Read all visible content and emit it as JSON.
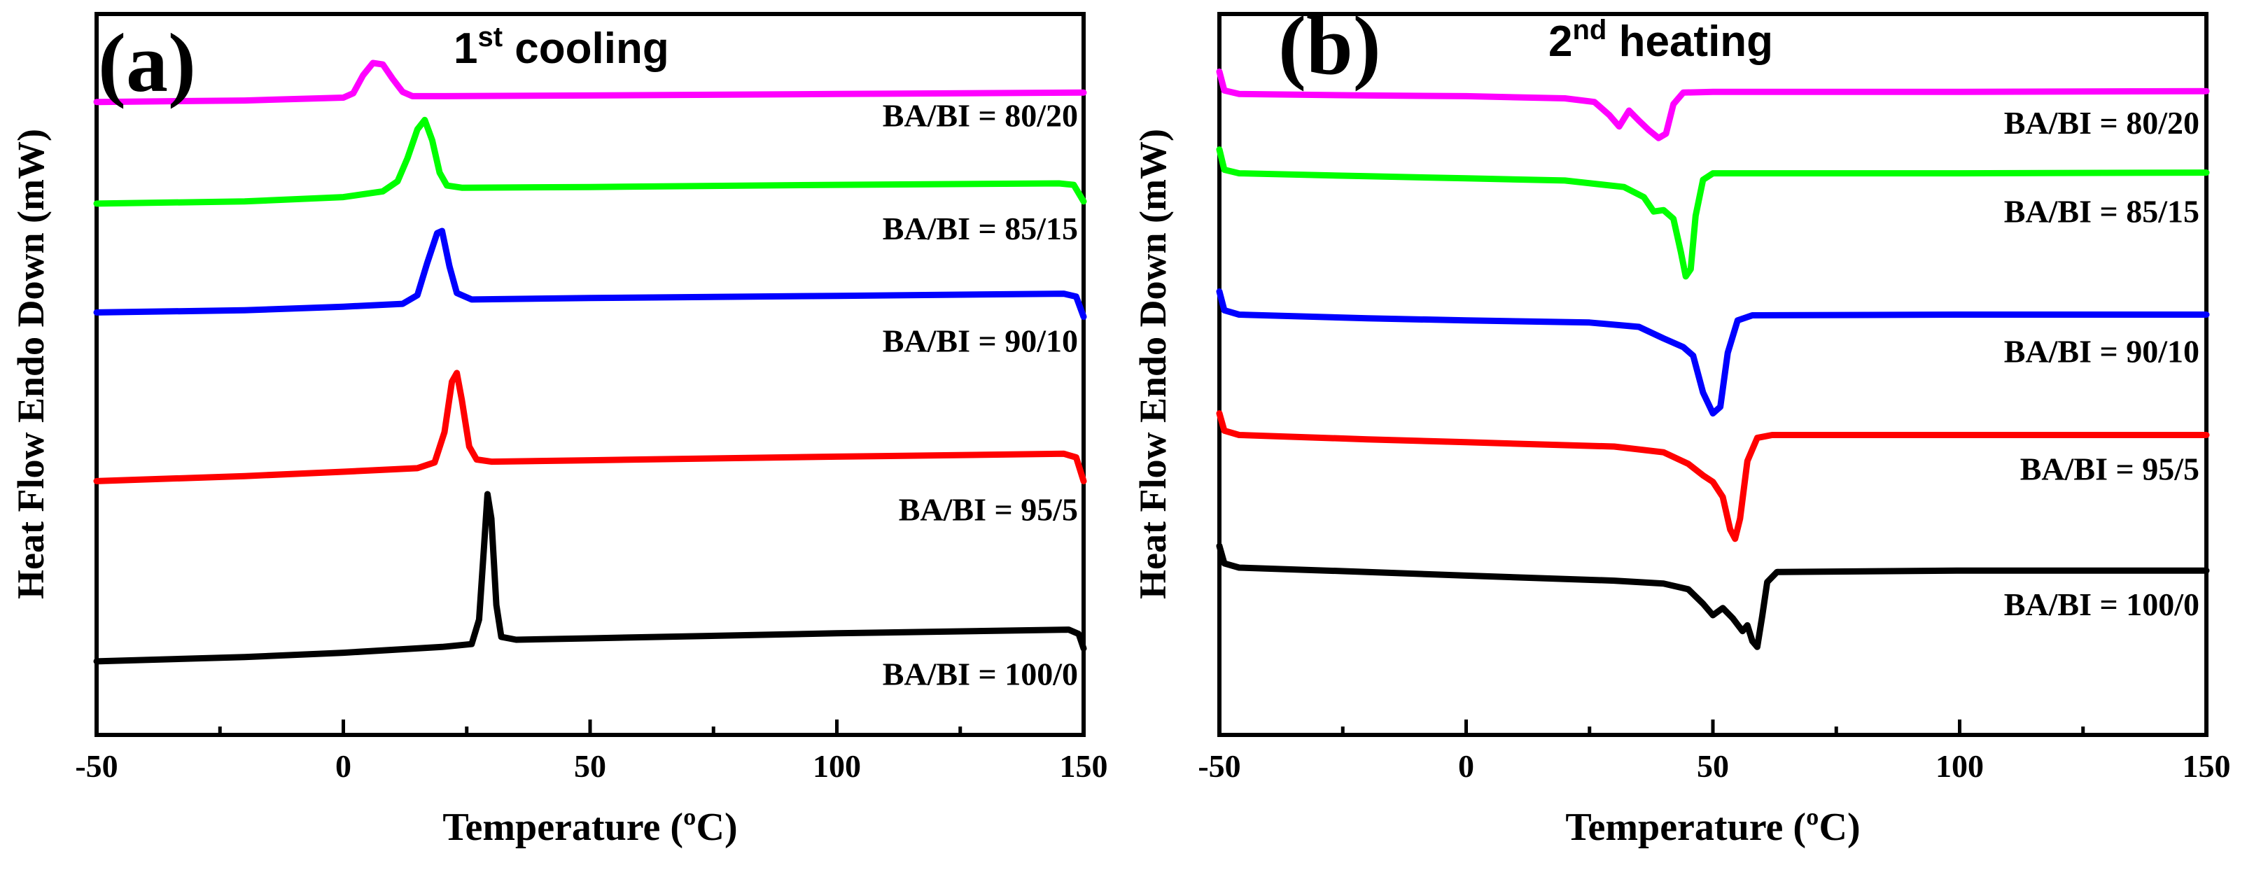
{
  "chart_data": [
    {
      "type": "line",
      "panel_letter": "(a)",
      "title_main": "1",
      "title_sup": "st",
      "title_rest": " cooling",
      "xlabel": "Temperature (ºC)",
      "ylabel": "Heat Flow Endo Down (mW)",
      "xlim": [
        -50,
        150
      ],
      "ylim": [
        0,
        100
      ],
      "xticks": [
        "-50",
        "0",
        "50",
        "100",
        "150"
      ],
      "xtick_values": [
        -50,
        0,
        50,
        100,
        150
      ],
      "grid": false,
      "series": [
        {
          "name": "BA/BI = 80/20",
          "color": "#ff00ff",
          "points": [
            [
              -50,
              87.8
            ],
            [
              -20,
              88.0
            ],
            [
              0,
              88.4
            ],
            [
              2,
              89.0
            ],
            [
              4,
              91.5
            ],
            [
              6,
              93.2
            ],
            [
              8,
              93.0
            ],
            [
              10,
              91.0
            ],
            [
              12,
              89.2
            ],
            [
              14,
              88.6
            ],
            [
              20,
              88.6
            ],
            [
              50,
              88.7
            ],
            [
              100,
              88.9
            ],
            [
              150,
              89.1
            ]
          ]
        },
        {
          "name": "BA/BI = 85/15",
          "color": "#00ff00",
          "points": [
            [
              -50,
              73.7
            ],
            [
              -20,
              74.0
            ],
            [
              0,
              74.6
            ],
            [
              8,
              75.4
            ],
            [
              11,
              76.8
            ],
            [
              13,
              80.0
            ],
            [
              15,
              84.0
            ],
            [
              16.5,
              85.3
            ],
            [
              18,
              82.5
            ],
            [
              19.5,
              78.0
            ],
            [
              21,
              76.2
            ],
            [
              24,
              75.9
            ],
            [
              50,
              76.0
            ],
            [
              100,
              76.3
            ],
            [
              145,
              76.5
            ],
            [
              148,
              76.3
            ],
            [
              150,
              74.0
            ]
          ]
        },
        {
          "name": "BA/BI = 90/10",
          "color": "#0000ff",
          "points": [
            [
              -50,
              58.6
            ],
            [
              -20,
              58.9
            ],
            [
              0,
              59.4
            ],
            [
              12,
              59.8
            ],
            [
              15,
              61.0
            ],
            [
              17,
              65.5
            ],
            [
              19,
              69.6
            ],
            [
              20,
              69.9
            ],
            [
              21.5,
              65.0
            ],
            [
              23,
              61.3
            ],
            [
              26,
              60.4
            ],
            [
              50,
              60.6
            ],
            [
              100,
              60.9
            ],
            [
              146,
              61.2
            ],
            [
              148.5,
              60.8
            ],
            [
              150,
              58.0
            ]
          ]
        },
        {
          "name": "BA/BI = 95/5",
          "color": "#ff0000",
          "points": [
            [
              -50,
              35.2
            ],
            [
              -20,
              35.9
            ],
            [
              0,
              36.5
            ],
            [
              15,
              37.0
            ],
            [
              18.5,
              37.8
            ],
            [
              20.5,
              42.0
            ],
            [
              22,
              49.0
            ],
            [
              23,
              50.2
            ],
            [
              24,
              46.5
            ],
            [
              25.5,
              40.0
            ],
            [
              27,
              38.2
            ],
            [
              30,
              37.9
            ],
            [
              50,
              38.1
            ],
            [
              100,
              38.6
            ],
            [
              146,
              39.0
            ],
            [
              148.5,
              38.5
            ],
            [
              150,
              35.2
            ]
          ]
        },
        {
          "name": "BA/BI = 100/0",
          "color": "#000000",
          "points": [
            [
              -50,
              10.2
            ],
            [
              -20,
              10.8
            ],
            [
              0,
              11.4
            ],
            [
              20,
              12.2
            ],
            [
              26,
              12.6
            ],
            [
              27.5,
              16.0
            ],
            [
              28.5,
              26.0
            ],
            [
              29.2,
              33.4
            ],
            [
              30,
              30.0
            ],
            [
              31,
              18.0
            ],
            [
              32,
              13.6
            ],
            [
              35,
              13.2
            ],
            [
              50,
              13.4
            ],
            [
              100,
              14.1
            ],
            [
              147,
              14.6
            ],
            [
              149,
              14.0
            ],
            [
              150,
              12.0
            ]
          ]
        }
      ]
    },
    {
      "type": "line",
      "panel_letter": "(b)",
      "title_main": "2",
      "title_sup": "nd",
      "title_rest": " heating",
      "xlabel": "Temperature (ºC)",
      "ylabel": "Heat Flow Endo Down (mW)",
      "xlim": [
        -50,
        150
      ],
      "ylim": [
        0,
        100
      ],
      "xticks": [
        "-50",
        "0",
        "50",
        "100",
        "150"
      ],
      "xtick_values": [
        -50,
        0,
        50,
        100,
        150
      ],
      "grid": false,
      "series": [
        {
          "name": "BA/BI = 80/20",
          "color": "#ff00ff",
          "points": [
            [
              -50,
              92.0
            ],
            [
              -49,
              89.4
            ],
            [
              -46,
              88.9
            ],
            [
              -20,
              88.7
            ],
            [
              0,
              88.6
            ],
            [
              20,
              88.3
            ],
            [
              26,
              87.8
            ],
            [
              29,
              86.0
            ],
            [
              31,
              84.4
            ],
            [
              33,
              86.6
            ],
            [
              35,
              85.2
            ],
            [
              37,
              83.9
            ],
            [
              39,
              82.8
            ],
            [
              40.5,
              83.4
            ],
            [
              42,
              87.5
            ],
            [
              44,
              89.1
            ],
            [
              50,
              89.2
            ],
            [
              100,
              89.2
            ],
            [
              150,
              89.3
            ]
          ]
        },
        {
          "name": "BA/BI = 85/15",
          "color": "#00ff00",
          "points": [
            [
              -50,
              81.2
            ],
            [
              -49,
              78.4
            ],
            [
              -46,
              77.9
            ],
            [
              -20,
              77.5
            ],
            [
              0,
              77.2
            ],
            [
              20,
              76.9
            ],
            [
              32,
              76.0
            ],
            [
              36,
              74.6
            ],
            [
              38,
              72.6
            ],
            [
              40,
              72.8
            ],
            [
              42,
              71.6
            ],
            [
              43.5,
              67.0
            ],
            [
              44.5,
              63.6
            ],
            [
              45.5,
              64.6
            ],
            [
              46.5,
              72.0
            ],
            [
              48,
              77.0
            ],
            [
              50,
              77.9
            ],
            [
              100,
              77.9
            ],
            [
              150,
              78.0
            ]
          ]
        },
        {
          "name": "BA/BI = 90/10",
          "color": "#0000ff",
          "points": [
            [
              -50,
              61.5
            ],
            [
              -49,
              58.9
            ],
            [
              -46,
              58.3
            ],
            [
              -20,
              57.8
            ],
            [
              0,
              57.5
            ],
            [
              25,
              57.2
            ],
            [
              35,
              56.6
            ],
            [
              40,
              55.0
            ],
            [
              44,
              53.8
            ],
            [
              46,
              52.6
            ],
            [
              48,
              47.5
            ],
            [
              50,
              44.6
            ],
            [
              51.5,
              45.5
            ],
            [
              53,
              53.0
            ],
            [
              55,
              57.5
            ],
            [
              58,
              58.2
            ],
            [
              100,
              58.3
            ],
            [
              150,
              58.3
            ]
          ]
        },
        {
          "name": "BA/BI = 95/5",
          "color": "#ff0000",
          "points": [
            [
              -50,
              44.6
            ],
            [
              -49,
              42.2
            ],
            [
              -46,
              41.6
            ],
            [
              -20,
              41.0
            ],
            [
              0,
              40.6
            ],
            [
              30,
              40.0
            ],
            [
              40,
              39.2
            ],
            [
              45,
              37.6
            ],
            [
              48,
              36.0
            ],
            [
              50,
              35.1
            ],
            [
              52,
              33.0
            ],
            [
              53.5,
              28.5
            ],
            [
              54.5,
              27.2
            ],
            [
              55.5,
              30.0
            ],
            [
              57,
              38.0
            ],
            [
              59,
              41.2
            ],
            [
              62,
              41.6
            ],
            [
              100,
              41.6
            ],
            [
              150,
              41.6
            ]
          ]
        },
        {
          "name": "BA/BI = 100/0",
          "color": "#000000",
          "points": [
            [
              -50,
              26.2
            ],
            [
              -49,
              23.8
            ],
            [
              -46,
              23.2
            ],
            [
              -20,
              22.6
            ],
            [
              0,
              22.1
            ],
            [
              30,
              21.4
            ],
            [
              40,
              21.0
            ],
            [
              45,
              20.2
            ],
            [
              48,
              18.2
            ],
            [
              50,
              16.6
            ],
            [
              52,
              17.6
            ],
            [
              54,
              16.2
            ],
            [
              56,
              14.4
            ],
            [
              57,
              15.2
            ],
            [
              58,
              13.0
            ],
            [
              59,
              12.2
            ],
            [
              60,
              16.5
            ],
            [
              61,
              21.2
            ],
            [
              63,
              22.6
            ],
            [
              100,
              22.8
            ],
            [
              150,
              22.8
            ]
          ]
        }
      ]
    }
  ]
}
